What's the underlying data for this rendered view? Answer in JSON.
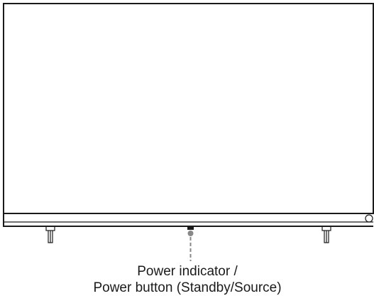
{
  "callout": {
    "lines": [
      "Power indicator /",
      "Power button (Standby/Source)"
    ]
  }
}
